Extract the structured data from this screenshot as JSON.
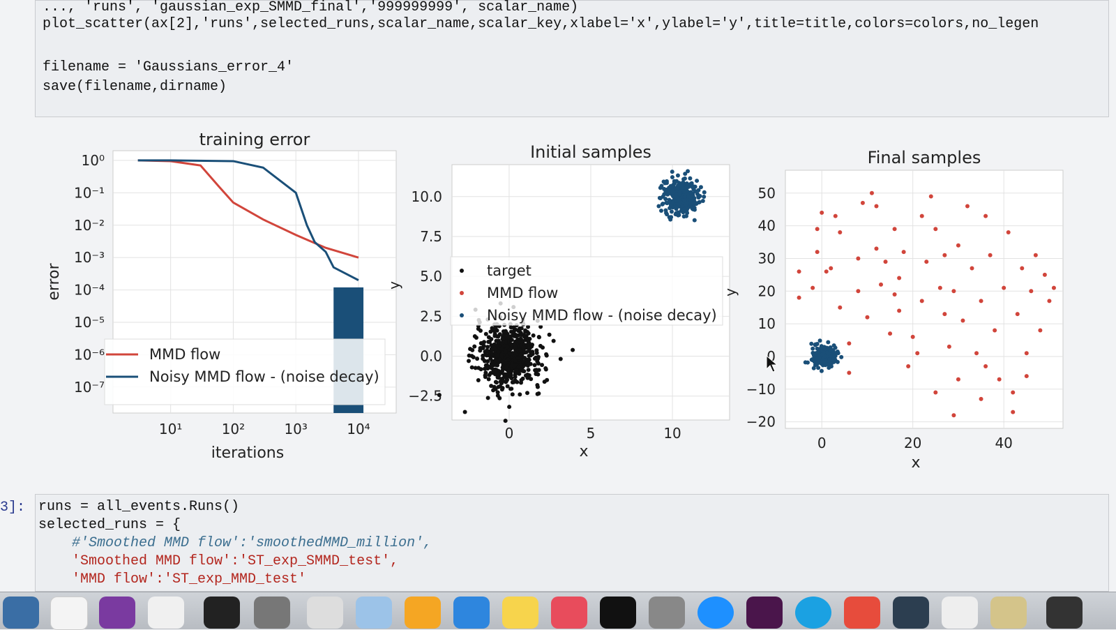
{
  "notebook": {
    "top_cell": {
      "line0": "..., 'runs', 'gaussian_exp_SMMD_final','999999999', scalar_name)",
      "line1": "plot_scatter(ax[2],'runs',selected_runs,scalar_name,scalar_key,xlabel='x',ylabel='y',title=title,colors=colors,no_legen",
      "line2": "filename = 'Gaussians_error_4'",
      "line3": "save(filename,dirname)"
    },
    "bottom_cell": {
      "prompt": "3]:",
      "line0": "runs = all_events.Runs()",
      "line1": "selected_runs = {",
      "line2": "#'Smoothed MMD flow':'smoothedMMD_million',",
      "line3": "'Smoothed MMD flow':'ST_exp_SMMD_test',",
      "line4": "'MMD flow':'ST_exp_MMD_test'"
    }
  },
  "colors": {
    "mmd_flow": "#d1453b",
    "noisy_flow": "#1a4f78",
    "target": "#111111"
  },
  "chart_data": [
    {
      "type": "line",
      "title": "training error",
      "xlabel": "iterations",
      "ylabel": "error",
      "xscale": "log",
      "yscale": "log",
      "xticks": [
        "10¹",
        "10²",
        "10³",
        "10⁴"
      ],
      "yticks": [
        "10⁰",
        "10⁻¹",
        "10⁻²",
        "10⁻³",
        "10⁻⁴",
        "10⁻⁵",
        "10⁻⁶",
        "10⁻⁷"
      ],
      "legend": [
        "MMD flow",
        "Noisy MMD flow - (noise decay)"
      ],
      "legend_position": "lower-left",
      "grid": true,
      "series": [
        {
          "name": "MMD flow",
          "x": [
            3,
            10,
            30,
            60,
            100,
            300,
            1000,
            3000,
            10000
          ],
          "y": [
            1,
            0.95,
            0.7,
            0.15,
            0.05,
            0.015,
            0.005,
            0.002,
            0.001
          ]
        },
        {
          "name": "Noisy MMD flow - (noise decay)",
          "x": [
            3,
            10,
            100,
            300,
            1000,
            1500,
            2000,
            3000,
            4000,
            10000
          ],
          "y": [
            1,
            1,
            0.95,
            0.6,
            0.1,
            0.01,
            0.003,
            0.0015,
            0.0005,
            0.0002
          ]
        }
      ]
    },
    {
      "type": "scatter",
      "title": "Initial samples",
      "xlabel": "x",
      "ylabel": "y",
      "xticks": [
        "0",
        "5",
        "10"
      ],
      "yticks": [
        "10.0",
        "7.5",
        "5.0",
        "2.5",
        "0.0",
        "−2.5"
      ],
      "xlim": [
        -3.5,
        13.5
      ],
      "ylim": [
        -4,
        12
      ],
      "legend": [
        "target",
        "MMD flow",
        "Noisy MMD flow - (noise decay)"
      ],
      "legend_position": "center",
      "grid": true,
      "clusters": [
        {
          "name": "initial",
          "center": [
            0,
            0
          ],
          "spread": 1.0,
          "count": 600,
          "color": "#111111"
        },
        {
          "name": "target",
          "center": [
            10.5,
            10
          ],
          "spread": 0.55,
          "count": 300,
          "color": "#1a4f78"
        }
      ]
    },
    {
      "type": "scatter",
      "title": "Final samples",
      "xlabel": "x",
      "ylabel": "y",
      "xticks": [
        "0",
        "20",
        "40"
      ],
      "yticks": [
        "50",
        "40",
        "30",
        "20",
        "10",
        "0",
        "−10",
        "−20"
      ],
      "xlim": [
        -8,
        53
      ],
      "ylim": [
        -22,
        57
      ],
      "grid": true,
      "clusters": [
        {
          "name": "noisy",
          "center": [
            0.5,
            0
          ],
          "spread": 1.0,
          "count": 200,
          "color": "#1a4f78"
        }
      ],
      "mmd_points": [
        [
          -5,
          26
        ],
        [
          -5,
          18
        ],
        [
          -2,
          21
        ],
        [
          -1,
          32
        ],
        [
          -1,
          39
        ],
        [
          0,
          44
        ],
        [
          1,
          26
        ],
        [
          2,
          27
        ],
        [
          3,
          43
        ],
        [
          4,
          15
        ],
        [
          4,
          38
        ],
        [
          6,
          -5
        ],
        [
          6,
          4
        ],
        [
          8,
          30
        ],
        [
          8,
          20
        ],
        [
          9,
          47
        ],
        [
          10,
          12
        ],
        [
          11,
          50
        ],
        [
          12,
          46
        ],
        [
          12,
          33
        ],
        [
          13,
          22
        ],
        [
          14,
          29
        ],
        [
          15,
          7
        ],
        [
          16,
          39
        ],
        [
          16,
          19
        ],
        [
          17,
          24
        ],
        [
          17,
          14
        ],
        [
          18,
          32
        ],
        [
          19,
          -3
        ],
        [
          20,
          6
        ],
        [
          21,
          1
        ],
        [
          22,
          17
        ],
        [
          22,
          43
        ],
        [
          23,
          29
        ],
        [
          24,
          49
        ],
        [
          25,
          -11
        ],
        [
          25,
          39
        ],
        [
          26,
          21
        ],
        [
          27,
          31
        ],
        [
          27,
          13
        ],
        [
          28,
          3
        ],
        [
          29,
          -18
        ],
        [
          29,
          20
        ],
        [
          30,
          34
        ],
        [
          30,
          -7
        ],
        [
          31,
          11
        ],
        [
          32,
          46
        ],
        [
          33,
          27
        ],
        [
          34,
          1
        ],
        [
          35,
          -13
        ],
        [
          35,
          17
        ],
        [
          36,
          43
        ],
        [
          36,
          -3
        ],
        [
          37,
          31
        ],
        [
          38,
          8
        ],
        [
          39,
          -7
        ],
        [
          40,
          21
        ],
        [
          41,
          38
        ],
        [
          42,
          -17
        ],
        [
          42,
          -11
        ],
        [
          43,
          13
        ],
        [
          44,
          27
        ],
        [
          45,
          -6
        ],
        [
          45,
          1
        ],
        [
          46,
          20
        ],
        [
          47,
          31
        ],
        [
          48,
          8
        ],
        [
          49,
          25
        ],
        [
          50,
          17
        ],
        [
          51,
          21
        ]
      ]
    }
  ]
}
